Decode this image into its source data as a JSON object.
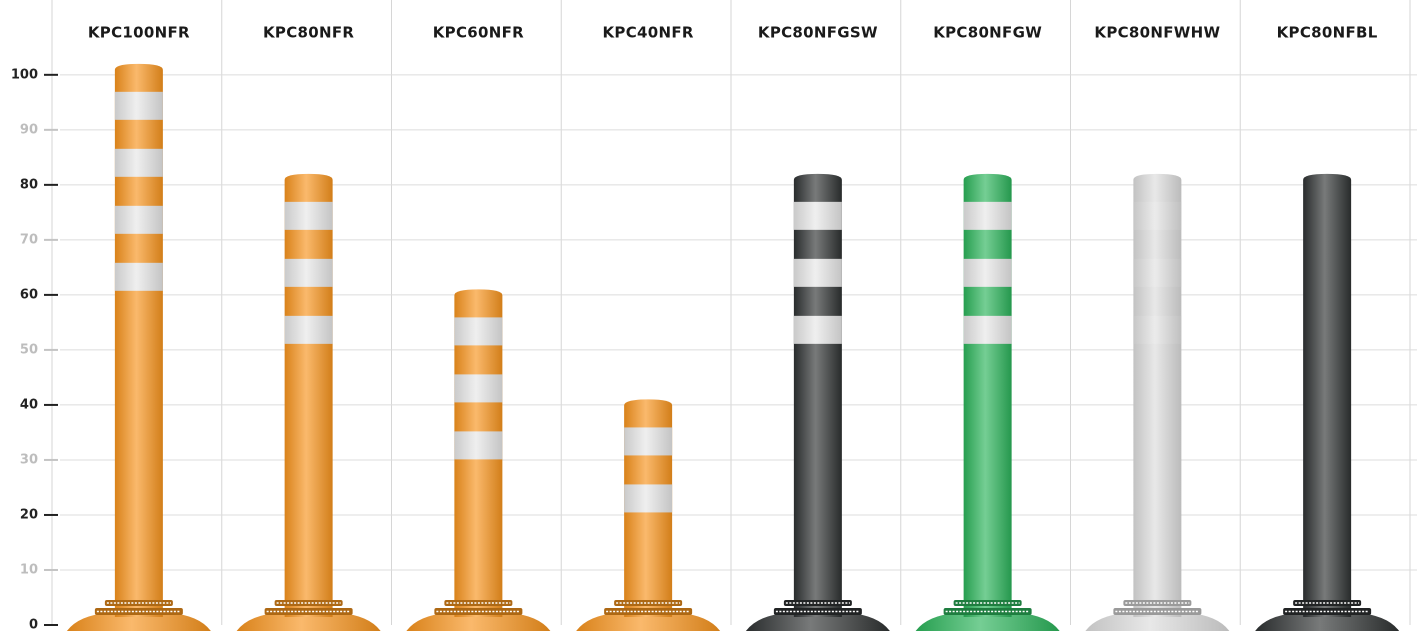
{
  "chart_data": {
    "type": "bar",
    "categories": [
      "KPC100NFR",
      "KPC80NFR",
      "KPC60NFR",
      "KPC40NFR",
      "KPC80NFGSW",
      "KPC80NFGW",
      "KPC80NFWHW",
      "KPC80NFBL"
    ],
    "values": [
      102,
      82,
      61,
      41,
      82,
      82,
      82,
      82
    ],
    "colors": [
      "#f7941d",
      "#f7941d",
      "#f7941d",
      "#f7941d",
      "#2f3233",
      "#2bb35a",
      "#dcdcdc",
      "#2f3233"
    ],
    "ylim": [
      0,
      113.6
    ],
    "yticks": [
      0,
      10,
      20,
      30,
      40,
      50,
      60,
      70,
      80,
      90,
      100
    ],
    "grid": true
  }
}
